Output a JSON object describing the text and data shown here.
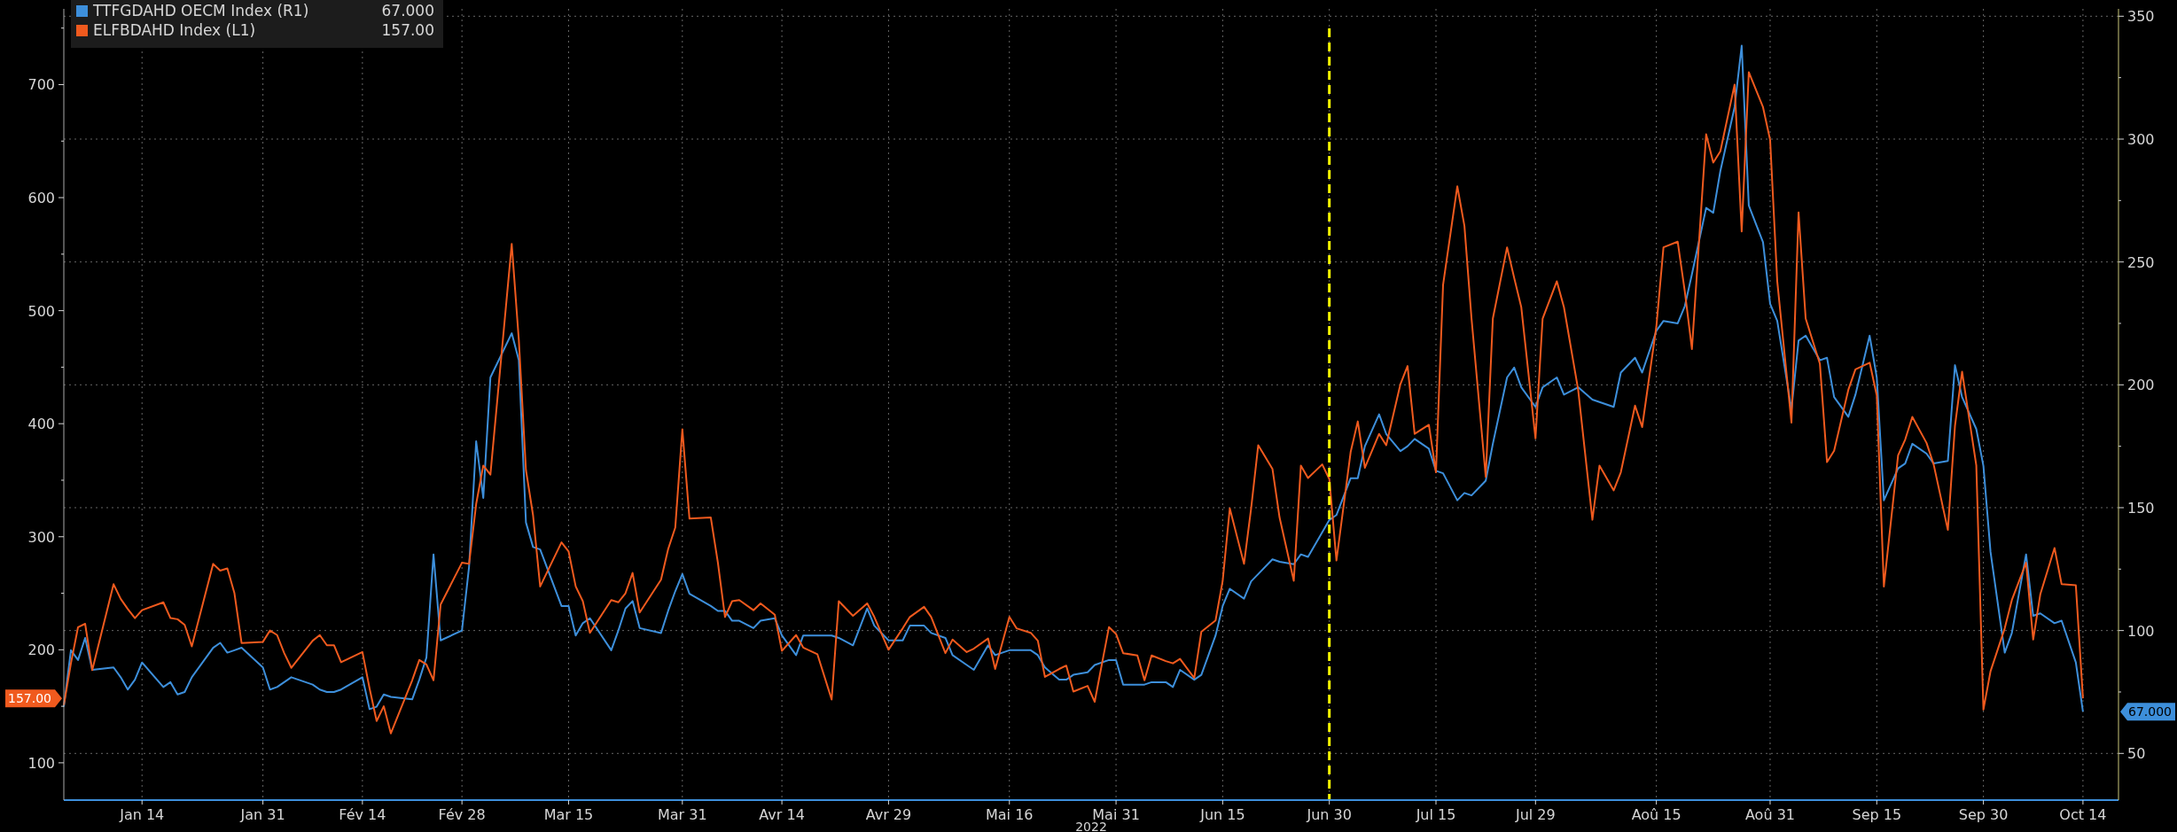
{
  "chart_data": {
    "type": "line",
    "xlabel": "2022",
    "legend": "top left",
    "grid": true,
    "line_style": "solid",
    "marker": "none",
    "xlim": [
      "2022-01-03",
      "2022-10-19"
    ],
    "xticks": [
      {
        "value": "2022-01-14",
        "label": "Jan 14"
      },
      {
        "value": "2022-01-31",
        "label": "Jan 31"
      },
      {
        "value": "2022-02-14",
        "label": "Fév 14"
      },
      {
        "value": "2022-02-28",
        "label": "Fév 28"
      },
      {
        "value": "2022-03-15",
        "label": "Mar 15"
      },
      {
        "value": "2022-03-31",
        "label": "Mar 31"
      },
      {
        "value": "2022-04-14",
        "label": "Avr 14"
      },
      {
        "value": "2022-04-29",
        "label": "Avr 29"
      },
      {
        "value": "2022-05-16",
        "label": "Mai 16"
      },
      {
        "value": "2022-05-31",
        "label": "Mai 31"
      },
      {
        "value": "2022-06-15",
        "label": "Jun 15"
      },
      {
        "value": "2022-06-30",
        "label": "Jun 30"
      },
      {
        "value": "2022-07-15",
        "label": "Jul 15"
      },
      {
        "value": "2022-07-29",
        "label": "Jul 29"
      },
      {
        "value": "2022-08-15",
        "label": "Aoû 15"
      },
      {
        "value": "2022-08-31",
        "label": "Aoû 31"
      },
      {
        "value": "2022-09-15",
        "label": "Sep 15"
      },
      {
        "value": "2022-09-30",
        "label": "Sep 30"
      },
      {
        "value": "2022-10-14",
        "label": "Oct 14"
      }
    ],
    "ylim": [
      67,
      767
    ],
    "yticks": [
      100,
      {
        "value": 150,
        "label": null
      },
      200,
      {
        "value": 250,
        "label": null
      },
      300,
      {
        "value": 350,
        "label": null
      },
      400,
      {
        "value": 450,
        "label": null
      },
      500,
      {
        "value": 550,
        "label": null
      },
      600,
      {
        "value": 650,
        "label": null
      },
      700,
      {
        "value": 750,
        "label": null
      }
    ],
    "y2lim": [
      31,
      353
    ],
    "y2ticks": [
      50,
      {
        "value": 75,
        "label": null
      },
      100,
      {
        "value": 125,
        "label": null
      },
      150,
      {
        "value": 175,
        "label": null
      },
      200,
      {
        "value": 225,
        "label": null
      },
      250,
      {
        "value": 275,
        "label": null
      },
      300,
      {
        "value": 325,
        "label": null
      },
      350
    ],
    "ref_lines": [
      {
        "axis": "x",
        "value": "2022-06-30",
        "color": "#ffff00",
        "line_style": "dashed"
      }
    ],
    "annotations": [
      "67.000",
      "157.00"
    ],
    "x": [
      "2022-01-03",
      "2022-01-04",
      "2022-01-05",
      "2022-01-06",
      "2022-01-07",
      "2022-01-10",
      "2022-01-11",
      "2022-01-12",
      "2022-01-13",
      "2022-01-14",
      "2022-01-17",
      "2022-01-18",
      "2022-01-19",
      "2022-01-20",
      "2022-01-21",
      "2022-01-24",
      "2022-01-25",
      "2022-01-26",
      "2022-01-27",
      "2022-01-28",
      "2022-01-31",
      "2022-02-01",
      "2022-02-02",
      "2022-02-03",
      "2022-02-04",
      "2022-02-07",
      "2022-02-08",
      "2022-02-09",
      "2022-02-10",
      "2022-02-11",
      "2022-02-14",
      "2022-02-15",
      "2022-02-16",
      "2022-02-17",
      "2022-02-18",
      "2022-02-21",
      "2022-02-22",
      "2022-02-23",
      "2022-02-24",
      "2022-02-25",
      "2022-02-28",
      "2022-03-01",
      "2022-03-02",
      "2022-03-03",
      "2022-03-04",
      "2022-03-07",
      "2022-03-08",
      "2022-03-09",
      "2022-03-10",
      "2022-03-11",
      "2022-03-14",
      "2022-03-15",
      "2022-03-16",
      "2022-03-17",
      "2022-03-18",
      "2022-03-21",
      "2022-03-22",
      "2022-03-23",
      "2022-03-24",
      "2022-03-25",
      "2022-03-28",
      "2022-03-29",
      "2022-03-30",
      "2022-03-31",
      "2022-04-01",
      "2022-04-04",
      "2022-04-05",
      "2022-04-06",
      "2022-04-07",
      "2022-04-08",
      "2022-04-10",
      "2022-04-11",
      "2022-04-13",
      "2022-04-14",
      "2022-04-16",
      "2022-04-17",
      "2022-04-19",
      "2022-04-21",
      "2022-04-22",
      "2022-04-24",
      "2022-04-26",
      "2022-04-27",
      "2022-04-29",
      "2022-05-01",
      "2022-05-02",
      "2022-05-04",
      "2022-05-05",
      "2022-05-07",
      "2022-05-08",
      "2022-05-10",
      "2022-05-11",
      "2022-05-13",
      "2022-05-14",
      "2022-05-16",
      "2022-05-17",
      "2022-05-19",
      "2022-05-20",
      "2022-05-21",
      "2022-05-23",
      "2022-05-24",
      "2022-05-25",
      "2022-05-27",
      "2022-05-28",
      "2022-05-30",
      "2022-05-31",
      "2022-06-01",
      "2022-06-03",
      "2022-06-04",
      "2022-06-05",
      "2022-06-07",
      "2022-06-08",
      "2022-06-09",
      "2022-06-11",
      "2022-06-12",
      "2022-06-14",
      "2022-06-15",
      "2022-06-16",
      "2022-06-18",
      "2022-06-19",
      "2022-06-20",
      "2022-06-22",
      "2022-06-23",
      "2022-06-25",
      "2022-06-26",
      "2022-06-27",
      "2022-06-29",
      "2022-06-30",
      "2022-07-01",
      "2022-07-03",
      "2022-07-04",
      "2022-07-05",
      "2022-07-07",
      "2022-07-08",
      "2022-07-10",
      "2022-07-11",
      "2022-07-12",
      "2022-07-14",
      "2022-07-15",
      "2022-07-16",
      "2022-07-18",
      "2022-07-19",
      "2022-07-20",
      "2022-07-22",
      "2022-07-23",
      "2022-07-25",
      "2022-07-26",
      "2022-07-27",
      "2022-07-29",
      "2022-07-30",
      "2022-08-01",
      "2022-08-02",
      "2022-08-04",
      "2022-08-06",
      "2022-08-07",
      "2022-08-09",
      "2022-08-10",
      "2022-08-12",
      "2022-08-13",
      "2022-08-15",
      "2022-08-16",
      "2022-08-18",
      "2022-08-19",
      "2022-08-20",
      "2022-08-22",
      "2022-08-23",
      "2022-08-24",
      "2022-08-26",
      "2022-08-27",
      "2022-08-28",
      "2022-08-30",
      "2022-08-31",
      "2022-09-01",
      "2022-09-03",
      "2022-09-04",
      "2022-09-05",
      "2022-09-07",
      "2022-09-08",
      "2022-09-09",
      "2022-09-11",
      "2022-09-12",
      "2022-09-14",
      "2022-09-15",
      "2022-09-16",
      "2022-09-18",
      "2022-09-19",
      "2022-09-20",
      "2022-09-22",
      "2022-09-23",
      "2022-09-25",
      "2022-09-26",
      "2022-09-27",
      "2022-09-29",
      "2022-09-30",
      "2022-10-01",
      "2022-10-03",
      "2022-10-04",
      "2022-10-06",
      "2022-10-07",
      "2022-10-08",
      "2022-10-10",
      "2022-10-11",
      "2022-10-13",
      "2022-10-14"
    ],
    "series": [
      {
        "name": "TTFGDAHD OECM Index (R1)",
        "color": "#3d8fdb",
        "axis": "y2",
        "values": [
          69,
          92,
          88,
          97,
          84,
          85,
          81,
          76,
          80,
          87,
          77,
          79,
          74,
          75,
          81,
          93,
          95,
          91,
          92,
          93,
          85,
          76,
          77,
          79,
          81,
          78,
          76,
          75,
          75,
          76,
          81,
          68,
          69,
          74,
          73,
          72,
          80,
          89,
          131,
          96,
          100,
          126,
          177,
          154,
          203,
          221,
          210,
          144,
          134,
          133,
          110,
          110,
          98,
          103,
          105,
          92,
          100,
          109,
          112,
          101,
          99,
          108,
          116,
          123,
          115,
          110,
          108,
          108,
          104,
          104,
          101,
          104,
          105,
          98,
          90,
          98,
          98,
          98,
          97,
          94,
          109,
          102,
          96,
          96,
          102,
          102,
          99,
          97,
          90,
          86,
          84,
          94,
          90,
          92,
          92,
          92,
          90,
          85,
          80,
          80,
          82,
          83,
          86,
          88,
          88,
          78,
          78,
          78,
          79,
          79,
          77,
          84,
          80,
          82,
          98,
          110,
          117,
          113,
          120,
          123,
          129,
          128,
          127,
          131,
          130,
          140,
          145,
          147,
          162,
          162,
          175,
          188,
          180,
          173,
          175,
          178,
          174,
          165,
          164,
          153,
          156,
          155,
          161,
          176,
          203,
          207,
          199,
          191,
          199,
          203,
          196,
          199,
          194,
          193,
          191,
          205,
          211,
          205,
          222,
          226,
          225,
          232,
          245,
          272,
          270,
          287,
          313,
          338,
          273,
          258,
          233,
          226,
          190,
          218,
          220,
          210,
          211,
          195,
          187,
          196,
          220,
          203,
          153,
          166,
          168,
          176,
          172,
          168,
          169,
          208,
          195,
          182,
          167,
          132,
          91,
          99,
          131,
          106,
          107,
          103,
          104,
          87,
          67
        ]
      },
      {
        "name": "ELFBDAHD Index (L1)",
        "color": "#f05a1e",
        "values": [
          151,
          188,
          220,
          223,
          182,
          258,
          245,
          236,
          228,
          235,
          242,
          228,
          227,
          222,
          203,
          276,
          270,
          272,
          250,
          206,
          207,
          217,
          213,
          197,
          184,
          208,
          213,
          204,
          204,
          189,
          198,
          166,
          137,
          150,
          126,
          173,
          191,
          187,
          173,
          240,
          277,
          276,
          329,
          363,
          355,
          559,
          474,
          359,
          319,
          256,
          295,
          287,
          256,
          243,
          215,
          244,
          242,
          250,
          268,
          233,
          262,
          289,
          308,
          395,
          316,
          317,
          277,
          229,
          243,
          244,
          235,
          241,
          231,
          199,
          213,
          202,
          196,
          156,
          243,
          230,
          241,
          229,
          200,
          219,
          229,
          238,
          229,
          197,
          209,
          198,
          201,
          210,
          183,
          229,
          219,
          215,
          208,
          176,
          183,
          186,
          163,
          168,
          154,
          220,
          214,
          197,
          195,
          173,
          195,
          190,
          188,
          192,
          175,
          216,
          226,
          261,
          325,
          276,
          325,
          381,
          360,
          317,
          261,
          363,
          352,
          364,
          351,
          279,
          375,
          402,
          361,
          391,
          381,
          435,
          451,
          391,
          399,
          357,
          523,
          610,
          575,
          493,
          353,
          493,
          556,
          529,
          503,
          387,
          493,
          526,
          503,
          430,
          315,
          363,
          341,
          357,
          416,
          397,
          486,
          556,
          561,
          517,
          466,
          656,
          631,
          641,
          700,
          570,
          711,
          680,
          651,
          526,
          401,
          587,
          493,
          453,
          366,
          376,
          430,
          448,
          454,
          425,
          256,
          372,
          386,
          406,
          383,
          364,
          306,
          398,
          446,
          363,
          147,
          181,
          219,
          244,
          277,
          209,
          249,
          290,
          258,
          257,
          157
        ]
      }
    ]
  }
}
